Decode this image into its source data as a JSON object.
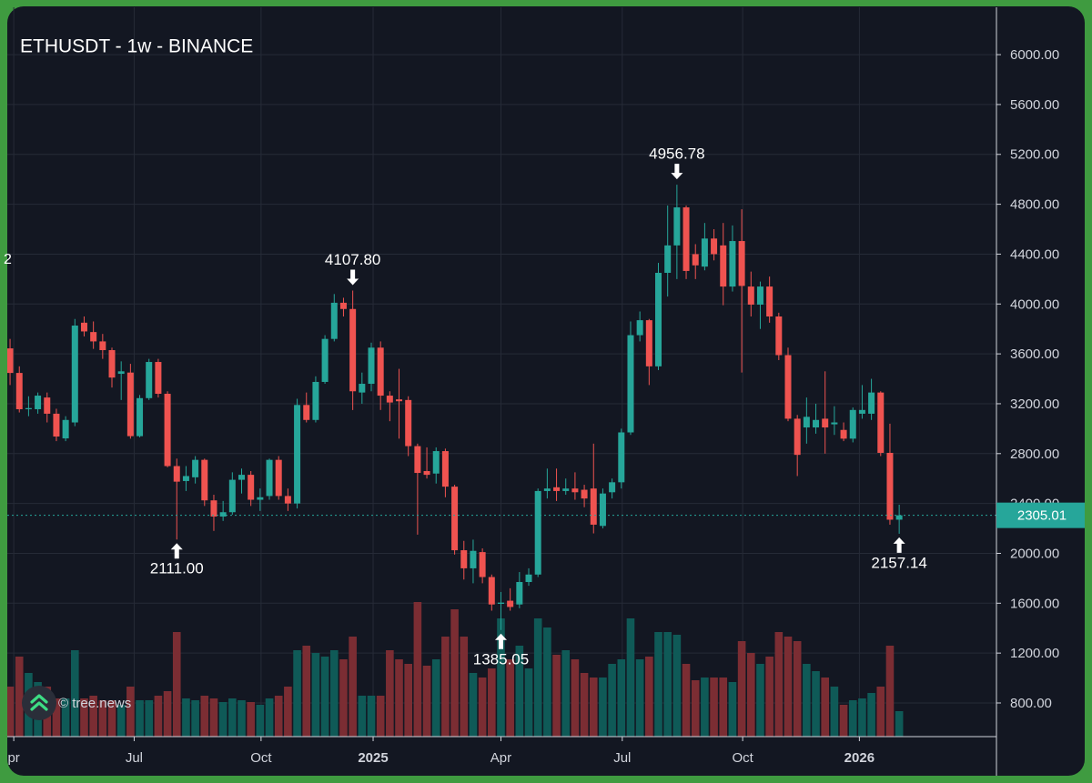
{
  "chart_data": {
    "type": "candlestick",
    "title": "ETHUSDT - 1w - BINANCE",
    "left_label": "2",
    "watermark": "© tree.news",
    "open": [
      3644,
      3447,
      3156,
      3156,
      3250,
      3120,
      2922,
      3050,
      3850,
      3775,
      3700,
      3630,
      3440,
      3450,
      2940,
      3245,
      3535,
      3280,
      2700,
      2580,
      2610,
      2750,
      2425,
      2295,
      2330,
      2590,
      2630,
      2430,
      2460,
      2750,
      2460,
      2400,
      3190,
      3070,
      3375,
      3720,
      4010,
      3960,
      3290,
      3360,
      3650,
      3265,
      3235,
      3230,
      2860,
      2660,
      2640,
      2820,
      2535,
      2025,
      1880,
      2010,
      1810,
      1595,
      1620,
      1590,
      1770,
      1830,
      2500,
      2530,
      2500,
      2520,
      2510,
      2520,
      2220,
      2490,
      2570,
      2970,
      3750,
      3870,
      3500,
      4250,
      4470,
      4775,
      4400,
      4300,
      4525,
      4470,
      4140,
      4505,
      4140,
      3995,
      4140,
      3900,
      3590,
      3080,
      3010,
      3010,
      3080,
      3035,
      2990,
      2920,
      3120,
      3120,
      3290,
      2806,
      2270
    ],
    "high": [
      3720,
      3500,
      3260,
      3290,
      3290,
      3160,
      3100,
      3880,
      3900,
      3860,
      3760,
      3650,
      3540,
      3520,
      3270,
      3560,
      3560,
      3300,
      2760,
      2700,
      2780,
      2760,
      2470,
      2420,
      2650,
      2680,
      2660,
      2520,
      2760,
      2780,
      2520,
      3240,
      3290,
      3420,
      3750,
      4080,
      4050,
      4107.8,
      3450,
      3690,
      3700,
      3300,
      3480,
      3260,
      2880,
      2850,
      2850,
      2840,
      2550,
      2100,
      2110,
      2040,
      1830,
      1690,
      1720,
      1850,
      1880,
      2520,
      2680,
      2680,
      2600,
      2650,
      2550,
      2880,
      2520,
      2600,
      3000,
      3860,
      3940,
      3880,
      4330,
      4790,
      4956.78,
      4790,
      4480,
      4650,
      4600,
      4650,
      4630,
      4760,
      4260,
      4180,
      4220,
      3930,
      3650,
      3110,
      3250,
      3200,
      3460,
      3180,
      3050,
      3170,
      3350,
      3400,
      3300,
      3040,
      2390
    ],
    "low": [
      3350,
      3130,
      3100,
      3120,
      3050,
      2900,
      2900,
      3020,
      3740,
      3640,
      3560,
      3330,
      3230,
      2920,
      2930,
      3230,
      3250,
      2690,
      2111,
      2500,
      2560,
      2380,
      2180,
      2260,
      2310,
      2480,
      2380,
      2340,
      2430,
      2430,
      2340,
      2360,
      3050,
      3050,
      3360,
      3700,
      3900,
      3150,
      3200,
      3300,
      3150,
      3060,
      2920,
      2780,
      2150,
      2600,
      2560,
      2450,
      1990,
      1790,
      1760,
      1760,
      1540,
      1385.05,
      1540,
      1560,
      1740,
      1810,
      2440,
      2420,
      2470,
      2430,
      2370,
      2160,
      2200,
      2440,
      2520,
      2950,
      3700,
      3350,
      3470,
      4060,
      4200,
      4200,
      4200,
      4270,
      4350,
      3990,
      4100,
      3450,
      3900,
      3800,
      3850,
      3550,
      3060,
      2620,
      2880,
      2960,
      2800,
      2950,
      2900,
      2890,
      3080,
      3070,
      2780,
      2230,
      2157.14
    ],
    "close": [
      3447,
      3156,
      3165,
      3265,
      3120,
      2937,
      3070,
      3827,
      3780,
      3700,
      3630,
      3410,
      3460,
      2940,
      3245,
      3535,
      3280,
      2700,
      2575,
      2620,
      2750,
      2425,
      2295,
      2330,
      2590,
      2630,
      2430,
      2450,
      2750,
      2460,
      2400,
      3190,
      3070,
      3375,
      3720,
      4010,
      3960,
      3300,
      3360,
      3650,
      3265,
      3210,
      3220,
      2860,
      2645,
      2630,
      2820,
      2535,
      2025,
      1880,
      2020,
      1810,
      1590,
      1605,
      1570,
      1770,
      1830,
      2500,
      2520,
      2500,
      2520,
      2490,
      2440,
      2230,
      2480,
      2570,
      2970,
      3750,
      3870,
      3500,
      4250,
      4470,
      4775,
      4265,
      4310,
      4525,
      4400,
      4140,
      4505,
      4145,
      3995,
      4140,
      3900,
      3590,
      3080,
      2790,
      3095,
      3070,
      3010,
      3050,
      2920,
      3150,
      3150,
      3290,
      2806,
      2270,
      2305.01
    ],
    "volume": [
      55,
      88,
      70,
      60,
      55,
      42,
      42,
      95,
      42,
      45,
      40,
      40,
      35,
      55,
      40,
      40,
      45,
      50,
      115,
      42,
      40,
      45,
      42,
      38,
      42,
      40,
      38,
      35,
      42,
      45,
      55,
      95,
      100,
      92,
      88,
      95,
      85,
      110,
      45,
      45,
      45,
      95,
      85,
      80,
      148,
      78,
      85,
      110,
      140,
      110,
      70,
      65,
      75,
      130,
      85,
      100,
      75,
      130,
      120,
      90,
      95,
      85,
      70,
      65,
      65,
      80,
      85,
      130,
      85,
      88,
      115,
      115,
      112,
      80,
      62,
      65,
      65,
      65,
      60,
      105,
      92,
      80,
      88,
      115,
      110,
      105,
      80,
      72,
      65,
      55,
      35,
      40,
      42,
      48,
      55,
      100,
      28
    ],
    "volume_ylim": [
      0,
      160
    ],
    "up_color": "#26a69a",
    "down_color": "#ef5350",
    "up_volume_color": "#0f5a57",
    "down_volume_color": "#7b2d33",
    "grid": true,
    "xlim": [
      -0.3,
      106.5
    ],
    "xticks": [
      {
        "value": 0.4,
        "label": "pr"
      },
      {
        "value": 13.4,
        "label": "Jul"
      },
      {
        "value": 27.1,
        "label": "Oct"
      },
      {
        "value": 39.2,
        "label": "2025"
      },
      {
        "value": 53.0,
        "label": "Apr"
      },
      {
        "value": 66.1,
        "label": "Jul"
      },
      {
        "value": 79.1,
        "label": "Oct"
      },
      {
        "value": 91.7,
        "label": "2026"
      }
    ],
    "ylim": [
      530,
      6380
    ],
    "yticks": [
      {
        "value": 800,
        "label": "800.00"
      },
      {
        "value": 1200,
        "label": "1200.00"
      },
      {
        "value": 1600,
        "label": "1600.00"
      },
      {
        "value": 2000,
        "label": "2000.00"
      },
      {
        "value": 2400,
        "label": "2400.00"
      },
      {
        "value": 2800,
        "label": "2800.00"
      },
      {
        "value": 3200,
        "label": "3200.00"
      },
      {
        "value": 3600,
        "label": "3600.00"
      },
      {
        "value": 4000,
        "label": "4000.00"
      },
      {
        "value": 4400,
        "label": "4400.00"
      },
      {
        "value": 4800,
        "label": "4800.00"
      },
      {
        "value": 5200,
        "label": "5200.00"
      },
      {
        "value": 5600,
        "label": "5600.00"
      },
      {
        "value": 6000,
        "label": "6000.00"
      }
    ],
    "annotations": [
      {
        "index": 18,
        "value": 2111,
        "label": "2111.00",
        "position": "below"
      },
      {
        "index": 37,
        "value": 4107.8,
        "label": "4107.80",
        "position": "above"
      },
      {
        "index": 53,
        "value": 1385.05,
        "label": "1385.05",
        "position": "below"
      },
      {
        "index": 72,
        "value": 4956.78,
        "label": "4956.78",
        "position": "above"
      },
      {
        "index": 96,
        "value": 2157.14,
        "label": "2157.14",
        "position": "below"
      }
    ],
    "last_price": {
      "value": 2305.01,
      "color": "#26a69a"
    }
  }
}
